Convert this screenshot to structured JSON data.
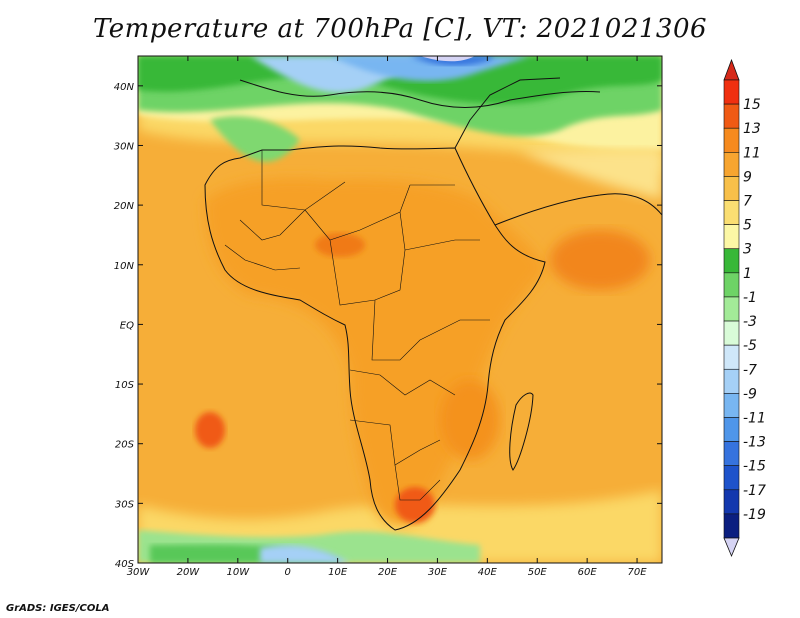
{
  "title": "Temperature at 700hPa [C], VT: 2021021306",
  "credit": "GrADS: IGES/COLA",
  "map": {
    "lon_range": [
      -30,
      75
    ],
    "lat_range": [
      -40,
      45
    ],
    "lat_ticks": [
      "40N",
      "30N",
      "20N",
      "10N",
      "EQ",
      "10S",
      "20S",
      "30S",
      "40S"
    ],
    "lat_values": [
      40,
      30,
      20,
      10,
      0,
      -10,
      -20,
      -30,
      -40
    ],
    "lon_ticks": [
      "30W",
      "20W",
      "10W",
      "0",
      "10E",
      "20E",
      "30E",
      "40E",
      "50E",
      "60E",
      "70E"
    ],
    "lon_values": [
      -30,
      -20,
      -10,
      0,
      10,
      20,
      30,
      40,
      50,
      60,
      70
    ]
  },
  "colorbar": {
    "labels": [
      "15",
      "13",
      "11",
      "9",
      "7",
      "5",
      "3",
      "1",
      "-1",
      "-3",
      "-5",
      "-7",
      "-9",
      "-11",
      "-13",
      "-15",
      "-17",
      "-19"
    ],
    "colors": [
      "#f03010",
      "#f05a14",
      "#f68a1e",
      "#f7a530",
      "#f8c04a",
      "#fade72",
      "#fcf7a5",
      "#38b838",
      "#6ed366",
      "#a3eb98",
      "#d9fbd8",
      "#cfe7f9",
      "#a5d0f6",
      "#78b6f1",
      "#4f96e9",
      "#3673de",
      "#1e53cb",
      "#1338ae",
      "#0b1f80"
    ],
    "max_color": "#d62a1a",
    "min_color": "#d6d4f4"
  },
  "colors": {
    "ocean_base": "#f6ae38",
    "land_base": "#f5a02a",
    "hot": "#f05a14",
    "cool_green": "#58c858",
    "cool_blue": "#90c0f0"
  }
}
